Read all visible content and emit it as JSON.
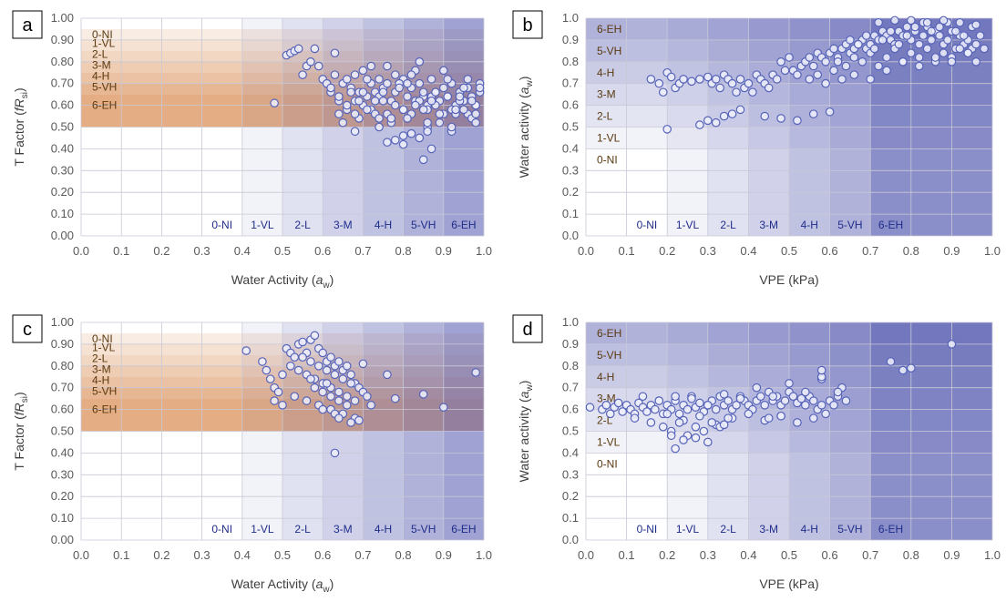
{
  "bands": [
    "0-NI",
    "1-VL",
    "2-L",
    "3-M",
    "4-H",
    "5-VH",
    "6-EH"
  ],
  "colors": {
    "blue_base": "#5a5fb2",
    "brown_base": "#d88a4e",
    "marker_edge": "#5663b8",
    "marker_fill": "#eef0fb",
    "grid": "#c8c8d6"
  },
  "chart_data": [
    {
      "panel": "a",
      "type": "scatter",
      "xlabel": "Water Activity (a_w)",
      "ylabel": "T Factor (fR_si)",
      "xlim": [
        0,
        1
      ],
      "ylim": [
        0,
        1
      ],
      "xticks": [
        "0.0",
        "0.1",
        "0.2",
        "0.3",
        "0.4",
        "0.5",
        "0.6",
        "0.7",
        "0.8",
        "0.9",
        "1.0"
      ],
      "yticks": [
        "0.00",
        "0.10",
        "0.20",
        "0.30",
        "0.40",
        "0.50",
        "0.60",
        "0.70",
        "0.80",
        "0.90",
        "1.00"
      ],
      "x_band_edges": [
        0.4,
        0.5,
        0.6,
        0.7,
        0.8,
        0.9,
        1.0
      ],
      "y_band_edges": [
        0.5,
        0.65,
        0.7,
        0.75,
        0.8,
        0.85,
        0.9,
        0.95
      ],
      "x": [
        0.48,
        0.51,
        0.52,
        0.53,
        0.54,
        0.55,
        0.56,
        0.57,
        0.58,
        0.59,
        0.6,
        0.61,
        0.62,
        0.63,
        0.64,
        0.65,
        0.66,
        0.67,
        0.68,
        0.69,
        0.7,
        0.71,
        0.72,
        0.73,
        0.74,
        0.75,
        0.76,
        0.77,
        0.78,
        0.79,
        0.8,
        0.81,
        0.82,
        0.83,
        0.84,
        0.85,
        0.86,
        0.87,
        0.88,
        0.89,
        0.9,
        0.91,
        0.92,
        0.93,
        0.94,
        0.95,
        0.96,
        0.97,
        0.98,
        0.99,
        0.64,
        0.66,
        0.68,
        0.7,
        0.72,
        0.74,
        0.76,
        0.78,
        0.8,
        0.82,
        0.84,
        0.86,
        0.88,
        0.9,
        0.92,
        0.94,
        0.96,
        0.98,
        0.63,
        0.67,
        0.71,
        0.75,
        0.79,
        0.83,
        0.87,
        0.91,
        0.95,
        0.99,
        0.65,
        0.69,
        0.73,
        0.77,
        0.81,
        0.85,
        0.89,
        0.93,
        0.97,
        0.68,
        0.74,
        0.8,
        0.86,
        0.92,
        0.98,
        0.72,
        0.78,
        0.84,
        0.9,
        0.96,
        0.62,
        0.7,
        0.76,
        0.82,
        0.88,
        0.94,
        0.66,
        0.73,
        0.79,
        0.85,
        0.91,
        0.97,
        0.71,
        0.77,
        0.83,
        0.89,
        0.95,
        0.64,
        0.69,
        0.75,
        0.81,
        0.87,
        0.93,
        0.99,
        0.68,
        0.74,
        0.8,
        0.86,
        0.92,
        0.98,
        0.85,
        0.87,
        0.84,
        0.86,
        0.78,
        0.8,
        0.82,
        0.76
      ],
      "y": [
        0.61,
        0.83,
        0.84,
        0.85,
        0.86,
        0.74,
        0.78,
        0.8,
        0.86,
        0.78,
        0.72,
        0.7,
        0.66,
        0.84,
        0.62,
        0.7,
        0.72,
        0.68,
        0.74,
        0.66,
        0.76,
        0.64,
        0.7,
        0.66,
        0.72,
        0.68,
        0.78,
        0.62,
        0.66,
        0.7,
        0.72,
        0.64,
        0.68,
        0.62,
        0.7,
        0.64,
        0.6,
        0.72,
        0.66,
        0.62,
        0.68,
        0.64,
        0.7,
        0.6,
        0.66,
        0.62,
        0.68,
        0.64,
        0.6,
        0.66,
        0.56,
        0.58,
        0.62,
        0.6,
        0.58,
        0.64,
        0.56,
        0.6,
        0.58,
        0.56,
        0.62,
        0.58,
        0.6,
        0.56,
        0.58,
        0.62,
        0.56,
        0.6,
        0.74,
        0.66,
        0.72,
        0.62,
        0.7,
        0.76,
        0.64,
        0.72,
        0.68,
        0.7,
        0.52,
        0.54,
        0.56,
        0.52,
        0.54,
        0.58,
        0.52,
        0.56,
        0.54,
        0.48,
        0.5,
        0.46,
        0.5,
        0.48,
        0.52,
        0.78,
        0.74,
        0.8,
        0.76,
        0.72,
        0.68,
        0.66,
        0.7,
        0.74,
        0.66,
        0.64,
        0.6,
        0.62,
        0.68,
        0.66,
        0.64,
        0.62,
        0.58,
        0.54,
        0.6,
        0.56,
        0.58,
        0.64,
        0.62,
        0.66,
        0.7,
        0.62,
        0.58,
        0.68,
        0.56,
        0.54,
        0.58,
        0.52,
        0.5,
        0.56,
        0.35,
        0.4,
        0.45,
        0.48,
        0.44,
        0.42,
        0.47,
        0.43
      ]
    },
    {
      "panel": "b",
      "type": "scatter",
      "xlabel": "VPE (kPa)",
      "ylabel": "Water activity (a_w)",
      "xlim": [
        0,
        1
      ],
      "ylim": [
        0,
        1
      ],
      "xticks": [
        "0.0",
        "0.1",
        "0.2",
        "0.3",
        "0.4",
        "0.5",
        "0.6",
        "0.7",
        "0.8",
        "0.9",
        "1.0"
      ],
      "yticks": [
        "0.0",
        "0.1",
        "0.2",
        "0.3",
        "0.4",
        "0.5",
        "0.6",
        "0.7",
        "0.8",
        "0.9",
        "1.0"
      ],
      "x_band_edges": [
        0.2,
        0.3,
        0.4,
        0.5,
        0.6,
        0.7
      ],
      "y_band_edges": [
        0.4,
        0.5,
        0.6,
        0.7,
        0.8,
        0.9
      ],
      "x": [
        0.16,
        0.18,
        0.19,
        0.2,
        0.21,
        0.22,
        0.23,
        0.24,
        0.26,
        0.28,
        0.3,
        0.31,
        0.32,
        0.33,
        0.34,
        0.35,
        0.36,
        0.37,
        0.38,
        0.39,
        0.4,
        0.41,
        0.42,
        0.43,
        0.44,
        0.45,
        0.46,
        0.47,
        0.48,
        0.49,
        0.5,
        0.51,
        0.52,
        0.53,
        0.54,
        0.55,
        0.56,
        0.57,
        0.58,
        0.59,
        0.6,
        0.61,
        0.62,
        0.63,
        0.64,
        0.65,
        0.66,
        0.67,
        0.68,
        0.69,
        0.7,
        0.71,
        0.72,
        0.73,
        0.74,
        0.75,
        0.76,
        0.77,
        0.78,
        0.79,
        0.8,
        0.81,
        0.82,
        0.83,
        0.84,
        0.85,
        0.86,
        0.87,
        0.88,
        0.89,
        0.9,
        0.91,
        0.92,
        0.93,
        0.94,
        0.95,
        0.96,
        0.97,
        0.98,
        0.62,
        0.64,
        0.66,
        0.68,
        0.7,
        0.72,
        0.74,
        0.76,
        0.78,
        0.8,
        0.82,
        0.84,
        0.86,
        0.88,
        0.9,
        0.92,
        0.94,
        0.96,
        0.65,
        0.67,
        0.69,
        0.71,
        0.73,
        0.75,
        0.77,
        0.79,
        0.81,
        0.83,
        0.85,
        0.87,
        0.89,
        0.91,
        0.93,
        0.95,
        0.55,
        0.57,
        0.59,
        0.61,
        0.63,
        0.66,
        0.7,
        0.74,
        0.78,
        0.82,
        0.86,
        0.9,
        0.94,
        0.72,
        0.76,
        0.8,
        0.84,
        0.88,
        0.92,
        0.96,
        0.2,
        0.28,
        0.3,
        0.32,
        0.34,
        0.36,
        0.38,
        0.44,
        0.48,
        0.52,
        0.56,
        0.6
      ],
      "y": [
        0.72,
        0.7,
        0.66,
        0.75,
        0.73,
        0.68,
        0.7,
        0.72,
        0.71,
        0.72,
        0.73,
        0.7,
        0.72,
        0.68,
        0.74,
        0.72,
        0.7,
        0.66,
        0.72,
        0.68,
        0.7,
        0.66,
        0.74,
        0.72,
        0.7,
        0.68,
        0.74,
        0.72,
        0.8,
        0.76,
        0.82,
        0.76,
        0.74,
        0.78,
        0.8,
        0.82,
        0.78,
        0.84,
        0.82,
        0.8,
        0.84,
        0.86,
        0.82,
        0.86,
        0.88,
        0.84,
        0.86,
        0.88,
        0.9,
        0.86,
        0.88,
        0.92,
        0.9,
        0.94,
        0.92,
        0.9,
        0.88,
        0.94,
        0.92,
        0.96,
        0.9,
        0.94,
        0.88,
        0.92,
        0.96,
        0.9,
        0.94,
        0.92,
        0.88,
        0.9,
        0.94,
        0.86,
        0.92,
        0.88,
        0.9,
        0.86,
        0.88,
        0.92,
        0.86,
        0.8,
        0.78,
        0.82,
        0.8,
        0.84,
        0.78,
        0.82,
        0.86,
        0.8,
        0.84,
        0.82,
        0.86,
        0.8,
        0.84,
        0.82,
        0.86,
        0.84,
        0.8,
        0.9,
        0.88,
        0.92,
        0.86,
        0.9,
        0.94,
        0.88,
        0.92,
        0.96,
        0.98,
        0.94,
        0.96,
        0.98,
        0.94,
        0.92,
        0.96,
        0.72,
        0.74,
        0.7,
        0.76,
        0.72,
        0.74,
        0.72,
        0.76,
        0.8,
        0.78,
        0.82,
        0.8,
        0.84,
        0.98,
        0.99,
        0.99,
        0.98,
        0.99,
        0.98,
        0.97,
        0.49,
        0.51,
        0.53,
        0.52,
        0.55,
        0.56,
        0.58,
        0.55,
        0.54,
        0.53,
        0.56,
        0.57
      ]
    },
    {
      "panel": "c",
      "type": "scatter",
      "xlabel": "Water Activity (a_w)",
      "ylabel": "T Factor (fR_si)",
      "xlim": [
        0,
        1
      ],
      "ylim": [
        0,
        1
      ],
      "xticks": [
        "0.0",
        "0.1",
        "0.2",
        "0.3",
        "0.4",
        "0.5",
        "0.6",
        "0.7",
        "0.8",
        "0.9",
        "1.0"
      ],
      "yticks": [
        "0.00",
        "0.10",
        "0.20",
        "0.30",
        "0.40",
        "0.50",
        "0.60",
        "0.70",
        "0.80",
        "0.90",
        "1.00"
      ],
      "x_band_edges": [
        0.4,
        0.5,
        0.6,
        0.7,
        0.8,
        0.9,
        1.0
      ],
      "y_band_edges": [
        0.5,
        0.65,
        0.7,
        0.75,
        0.8,
        0.85,
        0.9,
        0.95
      ],
      "x": [
        0.41,
        0.45,
        0.46,
        0.47,
        0.48,
        0.49,
        0.5,
        0.51,
        0.52,
        0.53,
        0.54,
        0.55,
        0.56,
        0.57,
        0.58,
        0.59,
        0.6,
        0.61,
        0.62,
        0.63,
        0.64,
        0.65,
        0.66,
        0.67,
        0.68,
        0.69,
        0.7,
        0.71,
        0.72,
        0.52,
        0.54,
        0.56,
        0.58,
        0.6,
        0.62,
        0.64,
        0.66,
        0.68,
        0.55,
        0.57,
        0.59,
        0.61,
        0.63,
        0.65,
        0.67,
        0.53,
        0.56,
        0.59,
        0.62,
        0.65,
        0.68,
        0.58,
        0.6,
        0.62,
        0.64,
        0.66,
        0.57,
        0.61,
        0.63,
        0.67,
        0.69,
        0.48,
        0.5,
        0.76,
        0.78,
        0.85,
        0.9,
        0.98,
        0.63,
        0.6,
        0.64,
        0.7
      ],
      "y": [
        0.87,
        0.82,
        0.78,
        0.74,
        0.7,
        0.68,
        0.76,
        0.88,
        0.86,
        0.84,
        0.9,
        0.91,
        0.86,
        0.92,
        0.94,
        0.88,
        0.86,
        0.82,
        0.84,
        0.8,
        0.82,
        0.78,
        0.8,
        0.76,
        0.72,
        0.7,
        0.68,
        0.66,
        0.62,
        0.8,
        0.78,
        0.76,
        0.74,
        0.72,
        0.7,
        0.68,
        0.66,
        0.64,
        0.84,
        0.82,
        0.8,
        0.78,
        0.76,
        0.74,
        0.72,
        0.66,
        0.64,
        0.62,
        0.6,
        0.58,
        0.56,
        0.7,
        0.68,
        0.66,
        0.64,
        0.62,
        0.74,
        0.72,
        0.58,
        0.54,
        0.55,
        0.64,
        0.62,
        0.76,
        0.65,
        0.67,
        0.61,
        0.77,
        0.4,
        0.6,
        0.56,
        0.81
      ]
    },
    {
      "panel": "d",
      "type": "scatter",
      "xlabel": "VPE (kPa)",
      "ylabel": "Water activity (a_w)",
      "xlim": [
        0,
        1
      ],
      "ylim": [
        0,
        1
      ],
      "xticks": [
        "0.0",
        "0.1",
        "0.2",
        "0.3",
        "0.4",
        "0.5",
        "0.6",
        "0.7",
        "0.8",
        "0.9",
        "1.0"
      ],
      "yticks": [
        "0.0",
        "0.1",
        "0.2",
        "0.3",
        "0.4",
        "0.5",
        "0.6",
        "0.7",
        "0.8",
        "0.9",
        "1.0"
      ],
      "x_band_edges": [
        0.2,
        0.3,
        0.4,
        0.5,
        0.6,
        0.7
      ],
      "y_band_edges": [
        0.4,
        0.5,
        0.6,
        0.7,
        0.8,
        0.9
      ],
      "x": [
        0.01,
        0.04,
        0.05,
        0.06,
        0.07,
        0.08,
        0.09,
        0.1,
        0.11,
        0.12,
        0.13,
        0.14,
        0.15,
        0.16,
        0.17,
        0.18,
        0.19,
        0.2,
        0.21,
        0.22,
        0.23,
        0.24,
        0.25,
        0.26,
        0.27,
        0.28,
        0.29,
        0.3,
        0.31,
        0.32,
        0.33,
        0.34,
        0.35,
        0.36,
        0.37,
        0.38,
        0.39,
        0.4,
        0.41,
        0.42,
        0.43,
        0.44,
        0.45,
        0.46,
        0.47,
        0.48,
        0.49,
        0.5,
        0.51,
        0.52,
        0.53,
        0.54,
        0.55,
        0.56,
        0.57,
        0.58,
        0.59,
        0.6,
        0.61,
        0.62,
        0.63,
        0.64,
        0.12,
        0.16,
        0.2,
        0.24,
        0.28,
        0.32,
        0.36,
        0.4,
        0.44,
        0.48,
        0.52,
        0.56,
        0.14,
        0.18,
        0.22,
        0.26,
        0.3,
        0.34,
        0.38,
        0.42,
        0.46,
        0.5,
        0.54,
        0.58,
        0.62,
        0.19,
        0.21,
        0.23,
        0.25,
        0.27,
        0.29,
        0.31,
        0.33,
        0.35,
        0.21,
        0.22,
        0.24,
        0.27,
        0.3,
        0.34,
        0.45,
        0.48,
        0.58,
        0.58,
        0.75,
        0.78,
        0.8,
        0.9
      ],
      "y": [
        0.61,
        0.6,
        0.62,
        0.58,
        0.61,
        0.63,
        0.59,
        0.62,
        0.6,
        0.58,
        0.63,
        0.61,
        0.59,
        0.62,
        0.6,
        0.64,
        0.58,
        0.62,
        0.6,
        0.64,
        0.58,
        0.62,
        0.6,
        0.66,
        0.61,
        0.63,
        0.59,
        0.62,
        0.64,
        0.6,
        0.66,
        0.62,
        0.64,
        0.6,
        0.62,
        0.66,
        0.64,
        0.62,
        0.6,
        0.64,
        0.66,
        0.62,
        0.68,
        0.64,
        0.66,
        0.62,
        0.64,
        0.68,
        0.66,
        0.63,
        0.65,
        0.62,
        0.66,
        0.64,
        0.6,
        0.62,
        0.58,
        0.64,
        0.62,
        0.66,
        0.7,
        0.64,
        0.56,
        0.54,
        0.58,
        0.55,
        0.57,
        0.53,
        0.56,
        0.58,
        0.55,
        0.57,
        0.54,
        0.56,
        0.66,
        0.64,
        0.66,
        0.65,
        0.62,
        0.67,
        0.65,
        0.7,
        0.66,
        0.72,
        0.68,
        0.74,
        0.68,
        0.52,
        0.5,
        0.54,
        0.48,
        0.52,
        0.5,
        0.54,
        0.52,
        0.56,
        0.48,
        0.42,
        0.46,
        0.47,
        0.45,
        0.53,
        0.56,
        0.57,
        0.75,
        0.78,
        0.82,
        0.78,
        0.79,
        0.9
      ]
    }
  ]
}
